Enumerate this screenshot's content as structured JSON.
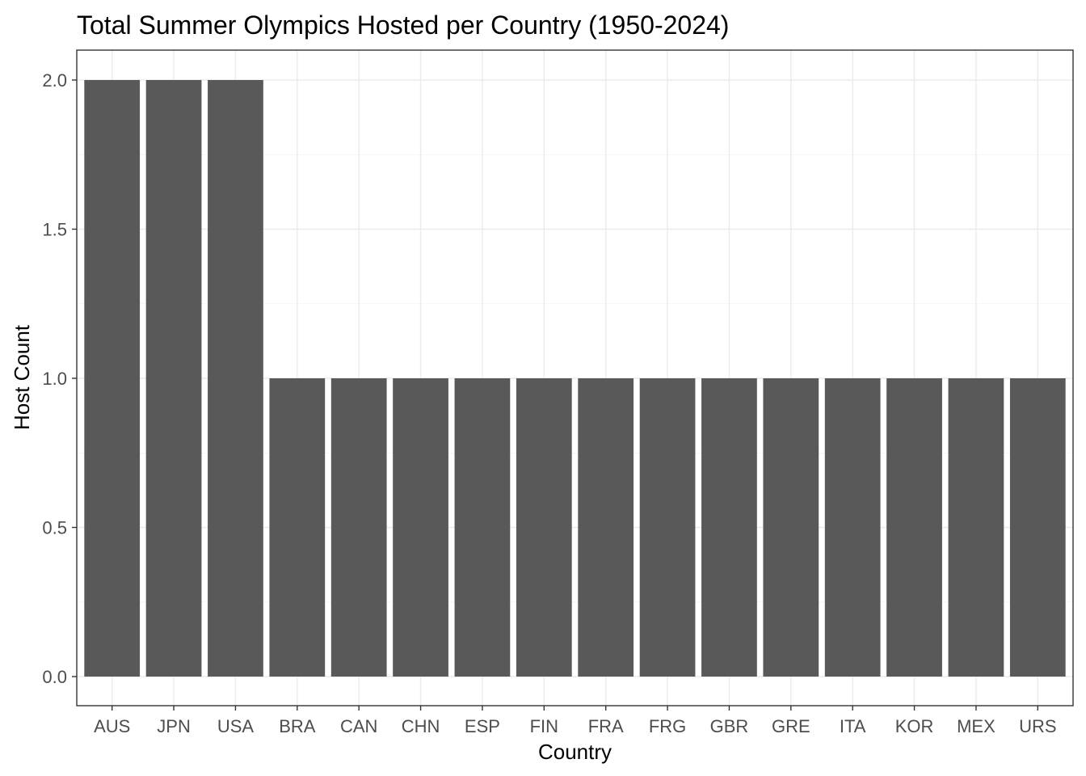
{
  "chart_data": {
    "type": "bar",
    "title": "Total Summer Olympics Hosted per Country (1950-2024)",
    "xlabel": "Country",
    "ylabel": "Host Count",
    "categories": [
      "AUS",
      "JPN",
      "USA",
      "BRA",
      "CAN",
      "CHN",
      "ESP",
      "FIN",
      "FRA",
      "FRG",
      "GBR",
      "GRE",
      "ITA",
      "KOR",
      "MEX",
      "URS"
    ],
    "values": [
      2,
      2,
      2,
      1,
      1,
      1,
      1,
      1,
      1,
      1,
      1,
      1,
      1,
      1,
      1,
      1
    ],
    "ylim": [
      0,
      2.0
    ],
    "yticks": [
      "0.0",
      "0.5",
      "1.0",
      "1.5",
      "2.0"
    ],
    "grid": true,
    "bar_color": "#595959"
  }
}
